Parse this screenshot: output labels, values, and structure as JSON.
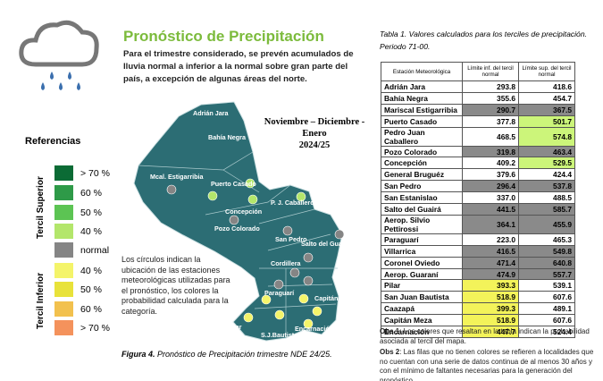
{
  "header": {
    "title": "Pronóstico de Precipitación",
    "summary": "Para el trimestre considerado, se prevén acumulados de lluvia normal a inferior a la normal sobre gran parte del país, a excepción de algunas áreas del norte."
  },
  "legend": {
    "title": "Referencias",
    "upper_label": "Tercil Superior",
    "lower_label": "Tercil Inferior",
    "items": [
      {
        "label": "> 70 %",
        "color": "#0b6b35"
      },
      {
        "label": "60 %",
        "color": "#2e9a48"
      },
      {
        "label": "50 %",
        "color": "#5cc453"
      },
      {
        "label": "40 %",
        "color": "#b3e66b"
      },
      {
        "label": "normal",
        "color": "#858585"
      },
      {
        "label": "40 %",
        "color": "#f4f46a"
      },
      {
        "label": "50 %",
        "color": "#e8e23a"
      },
      {
        "label": "60 %",
        "color": "#f2c14e"
      },
      {
        "label": "> 70 %",
        "color": "#f4925c"
      }
    ]
  },
  "map": {
    "period": "Noviembre – Diciembre - Enero",
    "year": "2024/25",
    "note": "Los círculos indican la ubicación de las estaciones meteorológicas utilizadas para el pronóstico, los colores la probabilidad calculada para la categoría.",
    "caption_label": "Figura 4.",
    "caption": "Pronóstico de Precipitación trimestre NDE 24/25.",
    "stations": [
      {
        "label": "Adrián Jara"
      },
      {
        "label": "Bahía Negra"
      },
      {
        "label": "Mcal. Estigarribia"
      },
      {
        "label": "Puerto Casado"
      },
      {
        "label": "P. J. Caballero"
      },
      {
        "label": "Concepción"
      },
      {
        "label": "Pozo Colorado"
      },
      {
        "label": "San Pedro"
      },
      {
        "label": "Salto del Guairá"
      },
      {
        "label": "Cordillera"
      },
      {
        "label": "Paraguarí"
      },
      {
        "label": "Capitán Meza"
      },
      {
        "label": "Pilar"
      },
      {
        "label": "S.J.Bautista"
      },
      {
        "label": "Encarnación"
      }
    ]
  },
  "table": {
    "caption": "Tabla 1. Valores calculados para los terciles de precipitación. Periodo 71-00.",
    "headers": [
      "Estación Meteorológica",
      "Límite inf. del tercil normal",
      "Límite sup. del tercil normal"
    ],
    "rows": [
      [
        "Adrián Jara",
        "293.8",
        "418.6"
      ],
      [
        "Bahía Negra",
        "355.6",
        "454.7"
      ],
      [
        "Mariscal Estigarribia",
        "290.7",
        "367.5"
      ],
      [
        "Puerto Casado",
        "377.8",
        "501.7"
      ],
      [
        "Pedro Juan Caballero",
        "468.5",
        "574.8"
      ],
      [
        "Pozo Colorado",
        "319.8",
        "463.4"
      ],
      [
        "Concepción",
        "409.2",
        "529.5"
      ],
      [
        "General Bruguéz",
        "379.6",
        "424.4"
      ],
      [
        "San Pedro",
        "296.4",
        "537.8"
      ],
      [
        "San Estanislao",
        "337.0",
        "488.5"
      ],
      [
        "Salto del Guairá",
        "441.5",
        "585.7"
      ],
      [
        "Aerop. Silvio Pettirossi",
        "364.1",
        "455.9"
      ],
      [
        "Paraguarí",
        "223.0",
        "465.3"
      ],
      [
        "Villarrica",
        "416.5",
        "549.8"
      ],
      [
        "Coronel Oviedo",
        "471.4",
        "640.8"
      ],
      [
        "Aerop. Guaraní",
        "474.9",
        "557.7"
      ],
      [
        "Pilar",
        "393.3",
        "539.1"
      ],
      [
        "San Juan Bautista",
        "518.9",
        "607.6"
      ],
      [
        "Caazapá",
        "399.3",
        "489.1"
      ],
      [
        "Capitán Meza",
        "518.9",
        "607.6"
      ],
      [
        "Encarnación",
        "447.7",
        "524.4"
      ]
    ],
    "cell_fills": [
      [
        null,
        null
      ],
      [
        null,
        null
      ],
      [
        "#8a8a8a",
        "#8a8a8a"
      ],
      [
        null,
        "#ccf57a"
      ],
      [
        null,
        "#ccf57a"
      ],
      [
        "#8a8a8a",
        "#8a8a8a"
      ],
      [
        null,
        "#ccf57a"
      ],
      [
        null,
        null
      ],
      [
        "#8a8a8a",
        "#8a8a8a"
      ],
      [
        null,
        null
      ],
      [
        "#8a8a8a",
        "#8a8a8a"
      ],
      [
        "#8a8a8a",
        "#8a8a8a"
      ],
      [
        null,
        null
      ],
      [
        "#8a8a8a",
        "#8a8a8a"
      ],
      [
        "#8a8a8a",
        "#8a8a8a"
      ],
      [
        "#8a8a8a",
        "#8a8a8a"
      ],
      [
        "#f3f35a",
        null
      ],
      [
        "#f3f35a",
        null
      ],
      [
        "#f3f35a",
        null
      ],
      [
        "#f3f35a",
        null
      ],
      [
        "#f3f35a",
        null
      ]
    ],
    "notes": [
      {
        "label": "Obs 1",
        "text": ": Los colores que resaltan en la tabla indican la probabilidad asociada al tercil del mapa."
      },
      {
        "label": "Obs 2",
        "text": ": Las filas que no tienen colores se refieren a localidades que no cuentan con una serie de datos continua de al menos 30 años y con el mínimo de faltantes necesarias para la generación del pronóstico."
      }
    ]
  }
}
